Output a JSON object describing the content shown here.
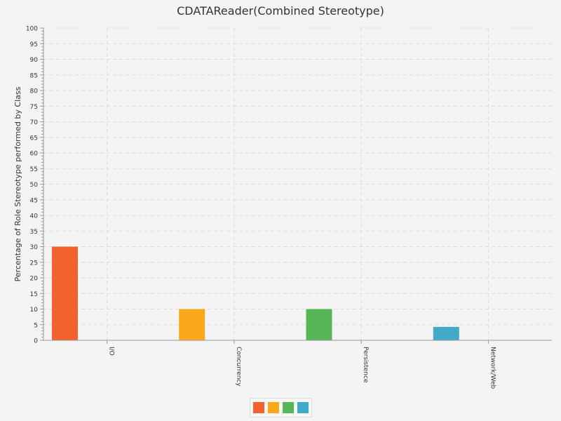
{
  "chart_data": {
    "type": "bar",
    "title": "CDATAReader(Combined Stereotype)",
    "xlabel": "",
    "ylabel": "Percentage of Role Stereotype performed by Class",
    "categories": [
      "I/O",
      "Concurrency",
      "Persistence",
      "Network/Web"
    ],
    "series": [
      {
        "values": [
          30,
          0,
          0,
          0
        ],
        "color": "#f3622d"
      },
      {
        "values": [
          0,
          10,
          0,
          0
        ],
        "color": "#fba71b"
      },
      {
        "values": [
          0,
          0,
          10,
          0
        ],
        "color": "#57b757"
      },
      {
        "values": [
          0,
          0,
          0,
          4.3
        ],
        "color": "#41a9c9"
      }
    ],
    "ylim": [
      0,
      100
    ],
    "yticks": [
      "0",
      "5",
      "10",
      "15",
      "20",
      "25",
      "30",
      "35",
      "40",
      "45",
      "50",
      "55",
      "60",
      "65",
      "70",
      "75",
      "80",
      "85",
      "90",
      "95",
      "100"
    ],
    "grid": true,
    "legend": "bottom-center"
  }
}
